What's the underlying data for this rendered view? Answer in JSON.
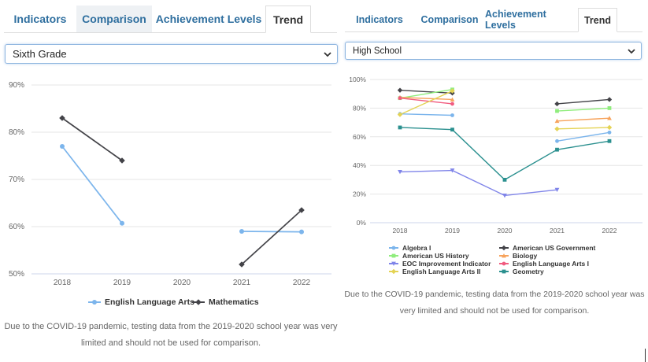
{
  "left_panel": {
    "tabs": [
      {
        "label": "Indicators"
      },
      {
        "label": "Comparison"
      },
      {
        "label": "Achievement Levels"
      },
      {
        "label": "Trend"
      }
    ],
    "select_value": "Sixth Grade",
    "note": "Due to the COVID-19 pandemic, testing data from the 2019-2020 school year was very limited and should not be used for comparison."
  },
  "right_panel": {
    "tabs": [
      {
        "label": "Indicators"
      },
      {
        "label": "Comparison"
      },
      {
        "label": "Achievement Levels"
      },
      {
        "label": "Trend"
      }
    ],
    "select_value": "High School",
    "note": "Due to the COVID-19 pandemic, testing data from the 2019-2020 school year was very limited and should not be used for comparison."
  },
  "chart_data": [
    {
      "type": "line",
      "categories": [
        "2018",
        "2019",
        "2020",
        "2021",
        "2022"
      ],
      "y_ticks": [
        "50%",
        "60%",
        "70%",
        "80%",
        "90%"
      ],
      "ylim": [
        50,
        90
      ],
      "grid": true,
      "legend_position": "bottom",
      "series": [
        {
          "name": "English Language Arts",
          "color": "#7cb5ec",
          "marker": "circle",
          "values": [
            77,
            60.7,
            null,
            59,
            58.9
          ]
        },
        {
          "name": "Mathematics",
          "color": "#434348",
          "marker": "diamond",
          "values": [
            83,
            74,
            null,
            52,
            63.5
          ]
        }
      ]
    },
    {
      "type": "line",
      "categories": [
        "2018",
        "2019",
        "2020",
        "2021",
        "2022"
      ],
      "y_ticks": [
        "0%",
        "20%",
        "40%",
        "60%",
        "80%",
        "100%"
      ],
      "ylim": [
        0,
        100
      ],
      "grid": true,
      "legend_position": "bottom",
      "series": [
        {
          "name": "Algebra I",
          "color": "#7cb5ec",
          "marker": "circle",
          "values": [
            76,
            75,
            null,
            57,
            63
          ]
        },
        {
          "name": "American US Government",
          "color": "#434348",
          "marker": "diamond",
          "values": [
            92.5,
            90.5,
            null,
            83,
            86
          ]
        },
        {
          "name": "American US History",
          "color": "#90ed7d",
          "marker": "square",
          "values": [
            87,
            93,
            null,
            78,
            80
          ]
        },
        {
          "name": "Biology",
          "color": "#f7a35c",
          "marker": "triangle",
          "values": [
            87.5,
            86,
            null,
            71,
            73
          ]
        },
        {
          "name": "EOC Improvement Indicator",
          "color": "#8085e9",
          "marker": "triangle-down",
          "values": [
            35.5,
            36.5,
            19,
            23,
            null
          ]
        },
        {
          "name": "English Language Arts I",
          "color": "#f15c80",
          "marker": "circle",
          "values": [
            87,
            83,
            null,
            null,
            null
          ]
        },
        {
          "name": "English Language Arts II",
          "color": "#e4d354",
          "marker": "diamond",
          "values": [
            75.5,
            92,
            null,
            65.5,
            66.5
          ]
        },
        {
          "name": "Geometry",
          "color": "#2b908f",
          "marker": "square",
          "values": [
            66.5,
            65,
            30,
            51,
            57
          ]
        }
      ]
    }
  ]
}
